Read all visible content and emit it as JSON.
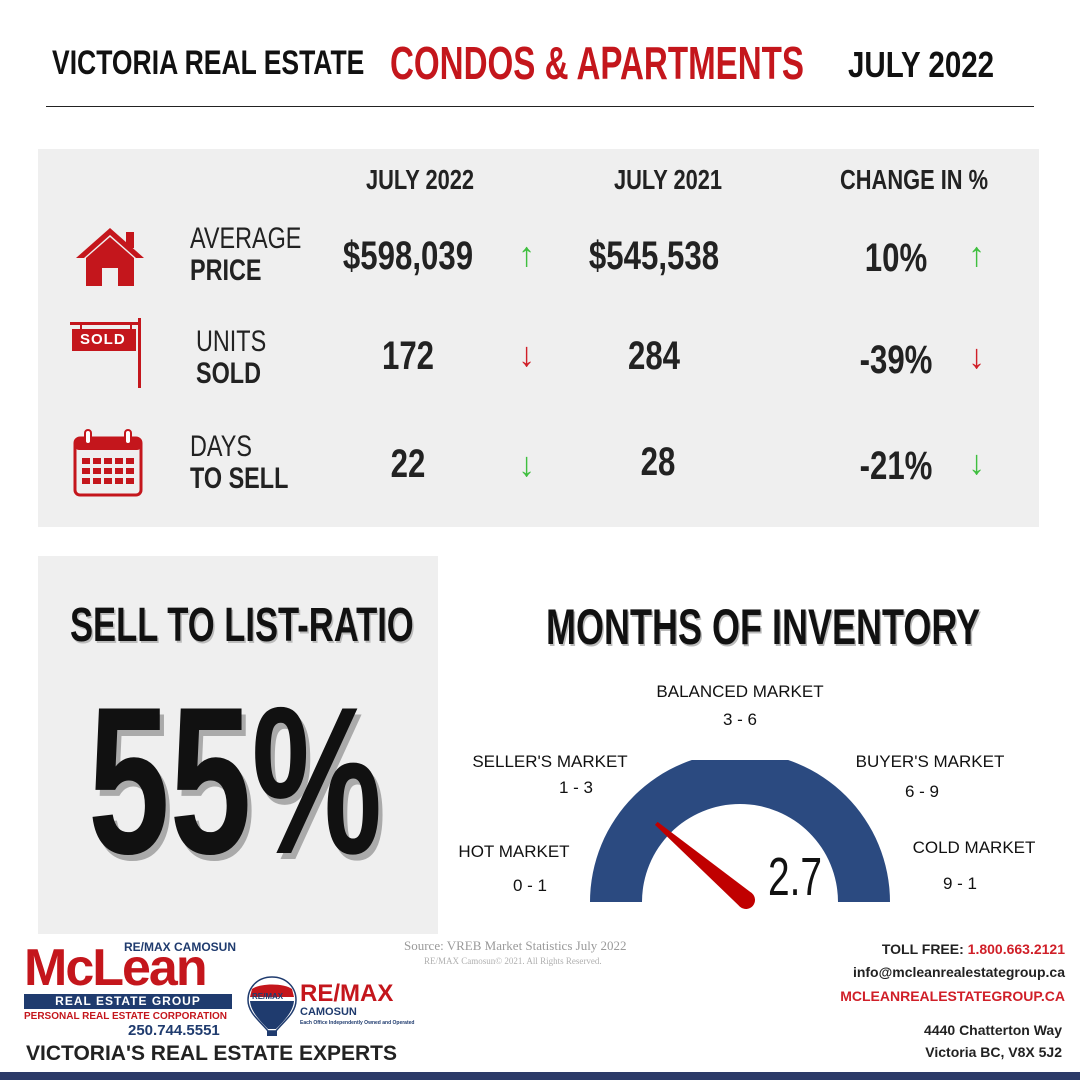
{
  "header": {
    "left_title": "VICTORIA REAL ESTATE",
    "category": "CONDOS & APARTMENTS",
    "period": "JULY 2022"
  },
  "stats": {
    "columns": [
      "JULY 2022",
      "JULY 2021",
      "CHANGE IN %"
    ],
    "rows": [
      {
        "label_top": "AVERAGE",
        "label_bottom": "PRICE",
        "icon": "house-icon",
        "current": "$598,039",
        "current_trend": "up",
        "previous": "$545,538",
        "change": "10%",
        "change_trend": "up"
      },
      {
        "label_top": "UNITS",
        "label_bottom": "SOLD",
        "icon": "sold-sign-icon",
        "sign_text": "SOLD",
        "current": "172",
        "current_trend": "down",
        "previous": "284",
        "change": "-39%",
        "change_trend": "down"
      },
      {
        "label_top": "DAYS",
        "label_bottom": "TO SELL",
        "icon": "calendar-icon",
        "current": "22",
        "current_trend": "down",
        "previous": "28",
        "change": "-21%",
        "change_trend": "down"
      }
    ]
  },
  "ratio": {
    "title": "SELL TO LIST-RATIO",
    "value": "55%"
  },
  "inventory": {
    "title": "MONTHS OF INVENTORY",
    "value": "2.7",
    "gauge_value": 2.7,
    "markets": [
      {
        "name": "HOT MARKET",
        "range": "0 - 1"
      },
      {
        "name": "SELLER'S MARKET",
        "range": "1 - 3"
      },
      {
        "name": "BALANCED MARKET",
        "range": "3 - 6"
      },
      {
        "name": "BUYER'S MARKET",
        "range": "6 - 9"
      },
      {
        "name": "COLD MARKET",
        "range": "9 - 1"
      }
    ]
  },
  "footer": {
    "source": "Source: VREB Market Statistics July 2022",
    "copyright": "RE/MAX Camosun© 2021. All Rights Reserved.",
    "logo": {
      "brand_small": "RE/MAX CAMOSUN",
      "brand": "McLean",
      "group": "REAL ESTATE GROUP",
      "corp": "PERSONAL REAL ESTATE CORPORATION",
      "phone": "250.744.5551"
    },
    "remax": {
      "name": "RE/MAX",
      "sub": "CAMOSUN",
      "tiny": "Each Office Independently Owned and Operated",
      "balloon": "RE/MAX"
    },
    "toll_free_label": "TOLL FREE:",
    "toll_free_number": "1.800.663.2121",
    "email": "info@mcleanrealestategroup.ca",
    "website": "MCLEANREALESTATEGROUP.CA",
    "address_line1": "4440 Chatterton Way",
    "address_line2": "Victoria BC, V8X 5J2",
    "tagline": "VICTORIA'S REAL ESTATE EXPERTS"
  },
  "colors": {
    "brand_red": "#c4161c",
    "gauge_blue": "#2b4a80",
    "needle_red": "#c00000",
    "up_green": "#3fbf3f",
    "down_red": "#d01f28",
    "panel_gray": "#efefef"
  }
}
